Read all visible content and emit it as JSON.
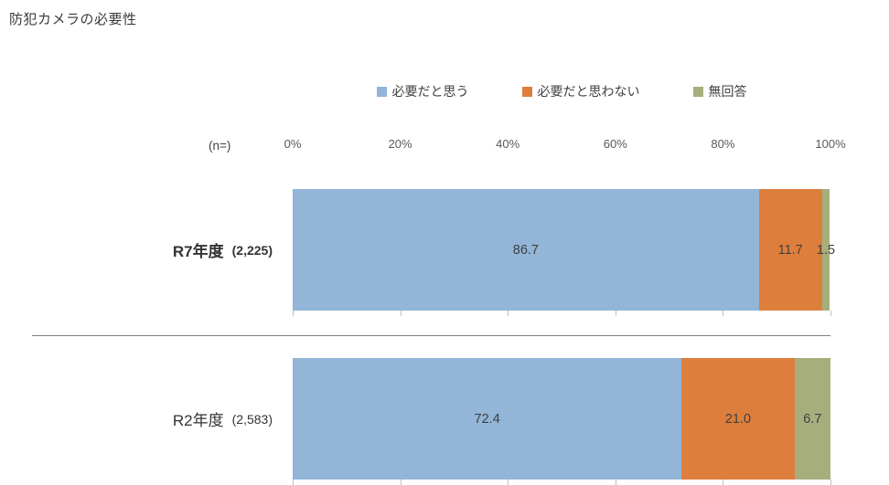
{
  "title": "防犯カメラの必要性",
  "axis_n_label": "(n=)",
  "chart_data": {
    "type": "bar",
    "orientation": "horizontal-stacked",
    "title": "防犯カメラの必要性",
    "xlim": [
      0,
      100
    ],
    "x_ticks": [
      "0%",
      "20%",
      "40%",
      "60%",
      "80%",
      "100%"
    ],
    "grid": false,
    "legend_position": "top",
    "series": [
      {
        "name": "必要だと思う",
        "color": "#92b5d8"
      },
      {
        "name": "必要だと思わない",
        "color": "#dd7e3d"
      },
      {
        "name": "無回答",
        "color": "#a6ae7c"
      }
    ],
    "rows": [
      {
        "label": "R7年度",
        "n": "(2,225)",
        "values": [
          86.7,
          11.7,
          1.5
        ],
        "value_labels": [
          "86.7",
          "11.7",
          "1.5"
        ]
      },
      {
        "label": "R2年度",
        "n": "(2,583)",
        "values": [
          72.4,
          21.0,
          6.7
        ],
        "value_labels": [
          "72.4",
          "21.0",
          "6.7"
        ]
      }
    ]
  }
}
